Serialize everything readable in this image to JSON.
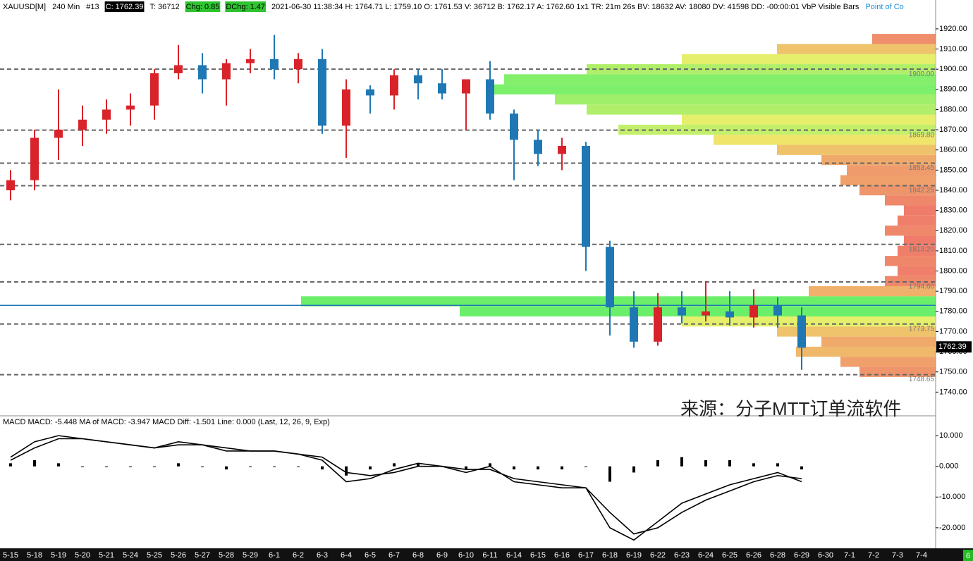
{
  "chart_data": {
    "type": "candlestick",
    "header": {
      "symbol": "XAUUSD[M]",
      "interval": "240 Min",
      "bar": "#13",
      "close": "C: 1762.39",
      "ticks": "T: 36712",
      "chg": "Chg: 0.85",
      "dchg": "DChg: 1.47",
      "info": "2021-06-30 11:38:34 H: 1764.71 L: 1759.10 O: 1761.53 V: 36712 B: 1762.17 A: 1762.60 1x1 TR: 21m 26s BV: 18632 AV: 18080 DV: 41598 DD: -00:00:01 VbP Visible Bars",
      "poc": "Point of Co"
    },
    "watermark": "来源：分子MTT订单流软件",
    "categories": [
      "5-15",
      "5-18",
      "5-19",
      "5-20",
      "5-21",
      "5-24",
      "5-25",
      "5-26",
      "5-27",
      "5-28",
      "5-29",
      "6-1",
      "6-2",
      "6-3",
      "6-4",
      "6-5",
      "6-7",
      "6-8",
      "6-9",
      "6-10",
      "6-11",
      "6-14",
      "6-15",
      "6-16",
      "6-17",
      "6-18",
      "6-19",
      "6-22",
      "6-23",
      "6-24",
      "6-25",
      "6-26",
      "6-28",
      "6-29",
      "6-30",
      "7-1",
      "7-2",
      "7-3",
      "7-4"
    ],
    "open": [
      1840,
      1845,
      1866,
      1870,
      1875,
      1880,
      1882,
      1898,
      1902,
      1895,
      1903,
      1905,
      1900,
      1905,
      1872,
      1890,
      1887,
      1897,
      1893,
      1888,
      1895,
      1878,
      1865,
      1858,
      1862,
      1812,
      1782,
      1765,
      1782,
      1778,
      1780,
      1777,
      1783,
      1778,
      null,
      null,
      null,
      null,
      null
    ],
    "high": [
      1850,
      1870,
      1890,
      1882,
      1885,
      1888,
      1900,
      1912,
      1908,
      1905,
      1910,
      1917,
      1908,
      1910,
      1895,
      1892,
      1900,
      1900,
      1900,
      1895,
      1904,
      1880,
      1870,
      1866,
      1864,
      1815,
      1790,
      1789,
      1790,
      1795,
      1790,
      1791,
      1787,
      1782,
      null,
      null,
      null,
      null,
      null
    ],
    "low": [
      1835,
      1840,
      1855,
      1862,
      1868,
      1872,
      1875,
      1895,
      1888,
      1882,
      1898,
      1895,
      1893,
      1868,
      1856,
      1878,
      1880,
      1885,
      1885,
      1870,
      1875,
      1845,
      1852,
      1850,
      1800,
      1768,
      1762,
      1763,
      1774,
      1775,
      1773,
      1772,
      1772,
      1751,
      null,
      null,
      null,
      null,
      null
    ],
    "close": [
      1845,
      1866,
      1870,
      1875,
      1880,
      1882,
      1898,
      1902,
      1895,
      1903,
      1905,
      1900,
      1905,
      1872,
      1890,
      1887,
      1897,
      1893,
      1888,
      1895,
      1878,
      1865,
      1858,
      1862,
      1812,
      1782,
      1765,
      1782,
      1778,
      1780,
      1777,
      1783,
      1778,
      1762,
      null,
      null,
      null,
      null,
      null
    ],
    "up_color": "#d8232a",
    "down_color": "#1f78b4",
    "ylim": [
      1730,
      1928
    ],
    "yticks": [
      {
        "value": 1740,
        "label": "1740.00"
      },
      {
        "value": 1750,
        "label": "1750.00"
      },
      {
        "value": 1760,
        "label": "1760.00"
      },
      {
        "value": 1770,
        "label": "1770.00"
      },
      {
        "value": 1780,
        "label": "1780.00"
      },
      {
        "value": 1790,
        "label": "1790.00"
      },
      {
        "value": 1800,
        "label": "1800.00"
      },
      {
        "value": 1810,
        "label": "1810.00"
      },
      {
        "value": 1820,
        "label": "1820.00"
      },
      {
        "value": 1830,
        "label": "1830.00"
      },
      {
        "value": 1840,
        "label": "1840.00"
      },
      {
        "value": 1850,
        "label": "1850.00"
      },
      {
        "value": 1860,
        "label": "1860.00"
      },
      {
        "value": 1870,
        "label": "1870.00"
      },
      {
        "value": 1880,
        "label": "1880.00"
      },
      {
        "value": 1890,
        "label": "1890.00"
      },
      {
        "value": 1900,
        "label": "1900.00"
      },
      {
        "value": 1910,
        "label": "1910.00"
      },
      {
        "value": 1920,
        "label": "1920.00"
      }
    ],
    "levels": [
      {
        "value": 1900,
        "label": "1900.00"
      },
      {
        "value": 1869.8,
        "label": "1869.80"
      },
      {
        "value": 1853.45,
        "label": "1853.45"
      },
      {
        "value": 1842.25,
        "label": "1842.25"
      },
      {
        "value": 1813.2,
        "label": "1813.20"
      },
      {
        "value": 1794.6,
        "label": "1794.60"
      },
      {
        "value": 1773.75,
        "label": "1773.75"
      },
      {
        "value": 1748.65,
        "label": "1748.65"
      }
    ],
    "last_price": {
      "value": 1762.39,
      "label": "1762.39"
    },
    "poc_price": 1783,
    "volume_profile": {
      "prices": [
        1750,
        1755,
        1760,
        1765,
        1770,
        1775,
        1780,
        1785,
        1790,
        1795,
        1800,
        1805,
        1810,
        1815,
        1820,
        1825,
        1830,
        1835,
        1840,
        1845,
        1850,
        1855,
        1860,
        1865,
        1870,
        1875,
        1880,
        1885,
        1890,
        1895,
        1900,
        1905,
        1910,
        1915
      ],
      "values": [
        12,
        15,
        22,
        18,
        25,
        40,
        75,
        100,
        20,
        8,
        6,
        8,
        6,
        5,
        8,
        6,
        5,
        8,
        12,
        15,
        14,
        18,
        25,
        35,
        50,
        40,
        55,
        60,
        70,
        68,
        55,
        40,
        25,
        10
      ]
    },
    "macd": {
      "title": "MACD  MACD: -5.448  MA of MACD: -3.947  MACD Diff: -1.501  Line: 0.000   (Last, 12, 26, 9, Exp)",
      "ylim": [
        -26,
        16
      ],
      "yticks": [
        {
          "value": 10,
          "label": "10.000"
        },
        {
          "value": 0,
          "label": "0.000"
        },
        {
          "value": -10,
          "label": "-10.000"
        },
        {
          "value": -20,
          "label": "-20.000"
        }
      ],
      "series": [
        {
          "color": "#000000",
          "values": [
            3,
            8,
            10,
            9,
            8,
            7,
            6,
            8,
            7,
            5,
            5,
            5,
            4,
            2,
            -5,
            -4,
            -1,
            1,
            0,
            -2,
            0,
            -5,
            -6,
            -7,
            -7,
            -20,
            -24,
            -18,
            -12,
            -9,
            -6,
            -4,
            -2,
            -5,
            null,
            null,
            null,
            null,
            null
          ]
        },
        {
          "color": "#000000",
          "values": [
            2,
            6,
            9,
            9,
            8,
            7,
            6,
            7,
            7,
            6,
            5,
            5,
            4,
            3,
            -2,
            -3,
            -2,
            0,
            0,
            -1,
            -1,
            -4,
            -5,
            -6,
            -7,
            -15,
            -22,
            -20,
            -15,
            -11,
            -8,
            -5,
            -3,
            -4,
            null,
            null,
            null,
            null,
            null
          ]
        }
      ],
      "diff": [
        1,
        2,
        1,
        0,
        0,
        0,
        0,
        1,
        0,
        -1,
        0,
        0,
        0,
        -1,
        -3,
        -1,
        1,
        1,
        0,
        -1,
        1,
        -1,
        -1,
        -1,
        0,
        -5,
        -2,
        2,
        3,
        2,
        2,
        1,
        1,
        -1,
        null,
        null,
        null,
        null,
        null
      ]
    },
    "corner_badge": "6"
  }
}
